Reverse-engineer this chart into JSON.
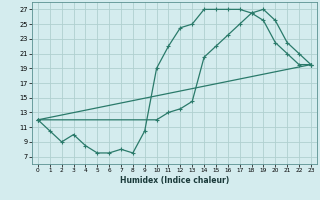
{
  "xlabel": "Humidex (Indice chaleur)",
  "bg_color": "#d4ecee",
  "grid_color": "#b0d0d0",
  "line_color": "#2a7a6a",
  "xlim": [
    -0.5,
    23.5
  ],
  "ylim": [
    6.0,
    28.0
  ],
  "xticks": [
    0,
    1,
    2,
    3,
    4,
    5,
    6,
    7,
    8,
    9,
    10,
    11,
    12,
    13,
    14,
    15,
    16,
    17,
    18,
    19,
    20,
    21,
    22,
    23
  ],
  "yticks": [
    7,
    9,
    11,
    13,
    15,
    17,
    19,
    21,
    23,
    25,
    27
  ],
  "line1_x": [
    0,
    1,
    2,
    3,
    4,
    5,
    6,
    7,
    8,
    9,
    10,
    11,
    12,
    13,
    14,
    15,
    16,
    17,
    18,
    19,
    20,
    21,
    22,
    23
  ],
  "line1_y": [
    12,
    10.5,
    9,
    10,
    8.5,
    7.5,
    7.5,
    8,
    7.5,
    10.5,
    19,
    22,
    24.5,
    25,
    27,
    27,
    27,
    27,
    26.5,
    25.5,
    22.5,
    21,
    19.5,
    19.5
  ],
  "line2_x": [
    0,
    10,
    11,
    12,
    13,
    14,
    15,
    16,
    17,
    18,
    19,
    20,
    21,
    22,
    23
  ],
  "line2_y": [
    12,
    12,
    13,
    13.5,
    14.5,
    20.5,
    22,
    23.5,
    25,
    26.5,
    27,
    25.5,
    22.5,
    21,
    19.5
  ],
  "line3_x": [
    0,
    23
  ],
  "line3_y": [
    12,
    19.5
  ]
}
